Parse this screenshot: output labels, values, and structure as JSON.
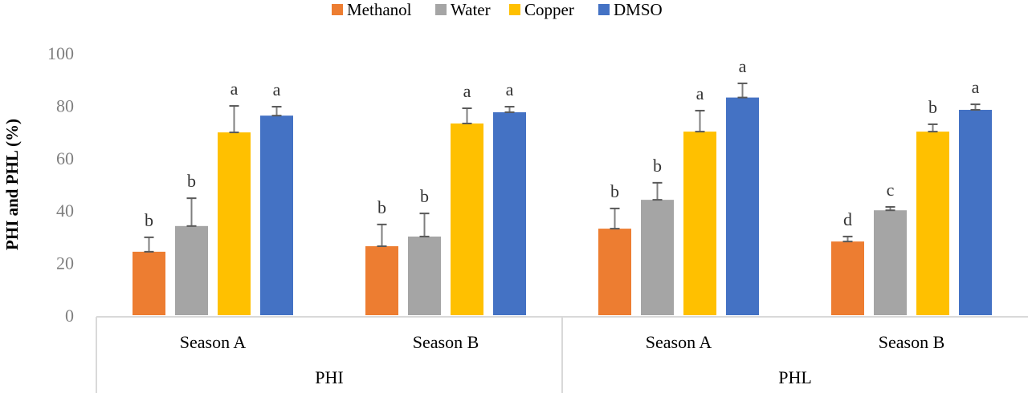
{
  "chart_data": {
    "type": "bar",
    "title": "",
    "ylabel": "PHI and PHL (%)",
    "xlabel": "",
    "ylim": [
      0,
      100
    ],
    "yticks": [
      0,
      20,
      40,
      60,
      80,
      100
    ],
    "grid": false,
    "legend_position": "top",
    "groups": [
      {
        "label": "PHI",
        "categories": [
          "Season A",
          "Season B"
        ]
      },
      {
        "label": "PHL",
        "categories": [
          "Season A",
          "Season B"
        ]
      }
    ],
    "series": [
      {
        "name": "Methanol",
        "color": "#ED7D31",
        "values": [
          24.2,
          26.3,
          33.0,
          28.1
        ],
        "error": [
          5.5,
          8.3,
          7.7,
          1.9
        ],
        "letters": [
          "b",
          "b",
          "b",
          "d"
        ]
      },
      {
        "name": "Water",
        "color": "#A5A5A5",
        "values": [
          34.0,
          30.0,
          44.0,
          40.0
        ],
        "error": [
          10.6,
          8.8,
          6.5,
          1.3
        ],
        "letters": [
          "b",
          "b",
          "b",
          "c"
        ]
      },
      {
        "name": "Copper",
        "color": "#FFC000",
        "values": [
          69.7,
          73.1,
          70.0,
          70.0
        ],
        "error": [
          10.1,
          5.8,
          8.0,
          2.8
        ],
        "letters": [
          "a",
          "a",
          "a",
          "b"
        ]
      },
      {
        "name": "DMSO",
        "color": "#4472C4",
        "values": [
          76.1,
          77.4,
          83.0,
          78.3
        ],
        "error": [
          3.4,
          2.1,
          5.4,
          2.1
        ],
        "letters": [
          "a",
          "a",
          "a",
          "a"
        ]
      }
    ]
  }
}
